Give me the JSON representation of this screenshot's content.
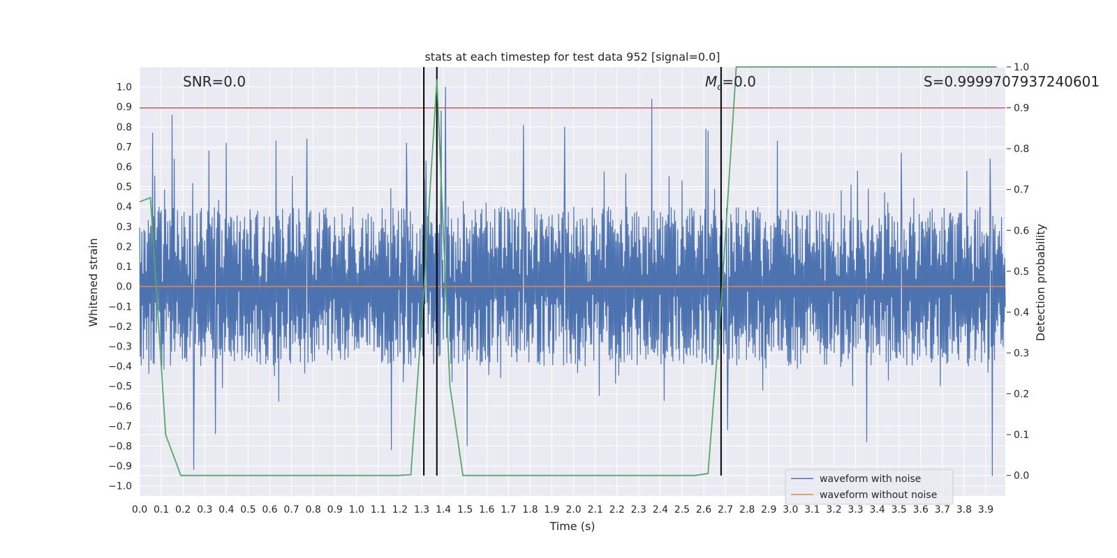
{
  "chart_data": {
    "type": "line",
    "title": "stats at each timestep for test data 952 [signal=0.0]",
    "xlabel": "Time (s)",
    "ylabel": "Whitened strain",
    "y2label": "Detection probability",
    "xlim": [
      0.0,
      3.99
    ],
    "ylim": [
      -1.05,
      1.1
    ],
    "y2lim": [
      -0.05,
      1.0
    ],
    "x_ticks": [
      "0.0",
      "0.1",
      "0.2",
      "0.3",
      "0.4",
      "0.5",
      "0.6",
      "0.7",
      "0.8",
      "0.9",
      "1.0",
      "1.1",
      "1.2",
      "1.3",
      "1.4",
      "1.5",
      "1.6",
      "1.7",
      "1.8",
      "1.9",
      "2.0",
      "2.1",
      "2.2",
      "2.3",
      "2.4",
      "2.5",
      "2.6",
      "2.7",
      "2.8",
      "2.9",
      "3.0",
      "3.1",
      "3.2",
      "3.3",
      "3.4",
      "3.5",
      "3.6",
      "3.7",
      "3.8",
      "3.9"
    ],
    "y_ticks": [
      "1.0",
      "0.9",
      "0.8",
      "0.7",
      "0.6",
      "0.5",
      "0.4",
      "0.3",
      "0.2",
      "0.1",
      "0.0",
      "−0.1",
      "−0.2",
      "−0.3",
      "−0.4",
      "−0.5",
      "−0.6",
      "−0.7",
      "−0.8",
      "−0.9",
      "−1.0"
    ],
    "y2_ticks": [
      "1.0",
      "0.9",
      "0.8",
      "0.7",
      "0.6",
      "0.5",
      "0.4",
      "0.3",
      "0.2",
      "0.1",
      "0.0"
    ],
    "annotations": {
      "snr": "SNR=0.0",
      "mc_symbol": "M",
      "mc_sub": "c",
      "mc_value": "=0.0",
      "s": "S=0.9999707937240601"
    },
    "threshold_y2": 0.9,
    "vertical_lines_x": [
      1.31,
      1.37,
      2.68
    ],
    "noisy_waveform": {
      "name": "waveform with noise",
      "color": "#4c72b0",
      "n_samples": 1600,
      "envelope": [
        0.4,
        -0.4
      ],
      "spikes": [
        {
          "x": 0.06,
          "y": 0.77
        },
        {
          "x": 0.15,
          "y": 0.86
        },
        {
          "x": 0.16,
          "y": 0.64
        },
        {
          "x": 0.25,
          "y": -0.92
        },
        {
          "x": 0.32,
          "y": 0.68
        },
        {
          "x": 0.35,
          "y": -0.74
        },
        {
          "x": 0.4,
          "y": 0.72
        },
        {
          "x": 0.63,
          "y": 0.73
        },
        {
          "x": 0.77,
          "y": 0.74
        },
        {
          "x": 1.16,
          "y": -0.82
        },
        {
          "x": 1.23,
          "y": 0.72
        },
        {
          "x": 1.32,
          "y": 0.63
        },
        {
          "x": 1.39,
          "y": 0.88
        },
        {
          "x": 1.41,
          "y": 1.0
        },
        {
          "x": 1.51,
          "y": -0.8
        },
        {
          "x": 1.77,
          "y": 0.81
        },
        {
          "x": 1.96,
          "y": 0.8
        },
        {
          "x": 2.36,
          "y": 0.94
        },
        {
          "x": 2.61,
          "y": 0.79
        },
        {
          "x": 2.62,
          "y": 0.78
        },
        {
          "x": 2.71,
          "y": -0.72
        },
        {
          "x": 2.94,
          "y": 0.73
        },
        {
          "x": 3.35,
          "y": 0.79
        },
        {
          "x": 3.35,
          "y": -0.78
        },
        {
          "x": 3.51,
          "y": 0.67
        },
        {
          "x": 3.92,
          "y": 0.64
        },
        {
          "x": 3.93,
          "y": -0.95
        }
      ]
    },
    "clean_waveform": {
      "name": "waveform without noise",
      "color": "#dd8452",
      "value": 0.0
    },
    "probability": {
      "color": "#55a868",
      "x": [
        0.0,
        0.05,
        0.12,
        0.19,
        0.25,
        0.5,
        0.75,
        1.0,
        1.19,
        1.25,
        1.31,
        1.37,
        1.43,
        1.49,
        1.75,
        2.0,
        2.25,
        2.5,
        2.56,
        2.62,
        2.68,
        2.75,
        3.0,
        3.5,
        3.95
      ],
      "y": [
        0.67,
        0.68,
        0.1,
        0.0,
        0.0,
        0.0,
        0.0,
        0.0,
        0.0,
        0.002,
        0.45,
        0.97,
        0.22,
        0.0,
        0.0,
        0.0,
        0.0,
        0.0,
        0.0,
        0.005,
        0.42,
        1.0,
        1.0,
        1.0,
        1.0
      ]
    }
  }
}
